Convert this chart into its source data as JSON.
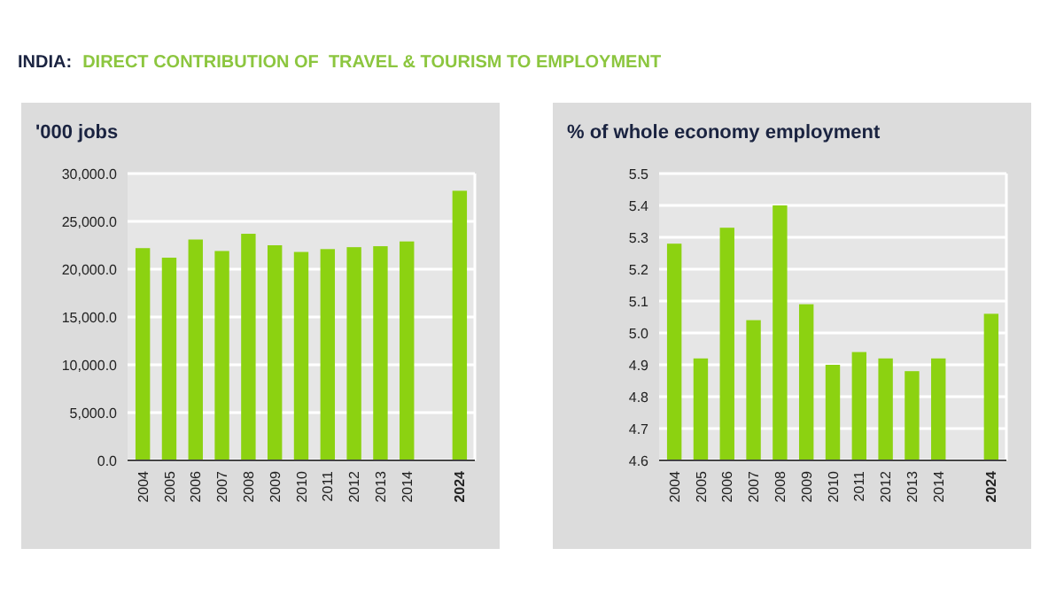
{
  "chart_data": [
    {
      "type": "bar",
      "title": "INDIA:",
      "subtitle": "DIRECT CONTRIBUTION OF  TRAVEL & TOURISM TO EMPLOYMENT",
      "ylabel": "'000 jobs",
      "categories": [
        "2004",
        "2005",
        "2006",
        "2007",
        "2008",
        "2009",
        "2010",
        "2011",
        "2012",
        "2013",
        "2014",
        null,
        "2024"
      ],
      "values": [
        22200,
        21200,
        23100,
        21900,
        23700,
        22500,
        21800,
        22100,
        22300,
        22400,
        22900,
        null,
        28200
      ],
      "color": "#8cd211",
      "ylim": [
        0,
        30000
      ],
      "yticks": [
        {
          "value": 0,
          "label": "0.0"
        },
        {
          "value": 5000,
          "label": "5,000.0"
        },
        {
          "value": 10000,
          "label": "10,000.0"
        },
        {
          "value": 15000,
          "label": "15,000.0"
        },
        {
          "value": 20000,
          "label": "20,000.0"
        },
        {
          "value": 25000,
          "label": "25,000.0"
        },
        {
          "value": 30000,
          "label": "30,000.0"
        }
      ],
      "grid": "y"
    },
    {
      "type": "bar",
      "ylabel": "% of whole economy employment",
      "categories": [
        "2004",
        "2005",
        "2006",
        "2007",
        "2008",
        "2009",
        "2010",
        "2011",
        "2012",
        "2013",
        "2014",
        null,
        "2024"
      ],
      "values": [
        5.28,
        4.92,
        5.33,
        5.04,
        5.4,
        5.09,
        4.9,
        4.94,
        4.92,
        4.88,
        4.92,
        null,
        5.06
      ],
      "color": "#8cd211",
      "ylim": [
        4.6,
        5.5
      ],
      "yticks": [
        {
          "value": 4.6,
          "label": "4.6"
        },
        {
          "value": 4.7,
          "label": "4.7"
        },
        {
          "value": 4.8,
          "label": "4.8"
        },
        {
          "value": 4.9,
          "label": "4.9"
        },
        {
          "value": 5.0,
          "label": "5.0"
        },
        {
          "value": 5.1,
          "label": "5.1"
        },
        {
          "value": 5.2,
          "label": "5.2"
        },
        {
          "value": 5.3,
          "label": "5.3"
        },
        {
          "value": 5.4,
          "label": "5.4"
        },
        {
          "value": 5.5,
          "label": "5.5"
        }
      ],
      "grid": "y"
    }
  ]
}
